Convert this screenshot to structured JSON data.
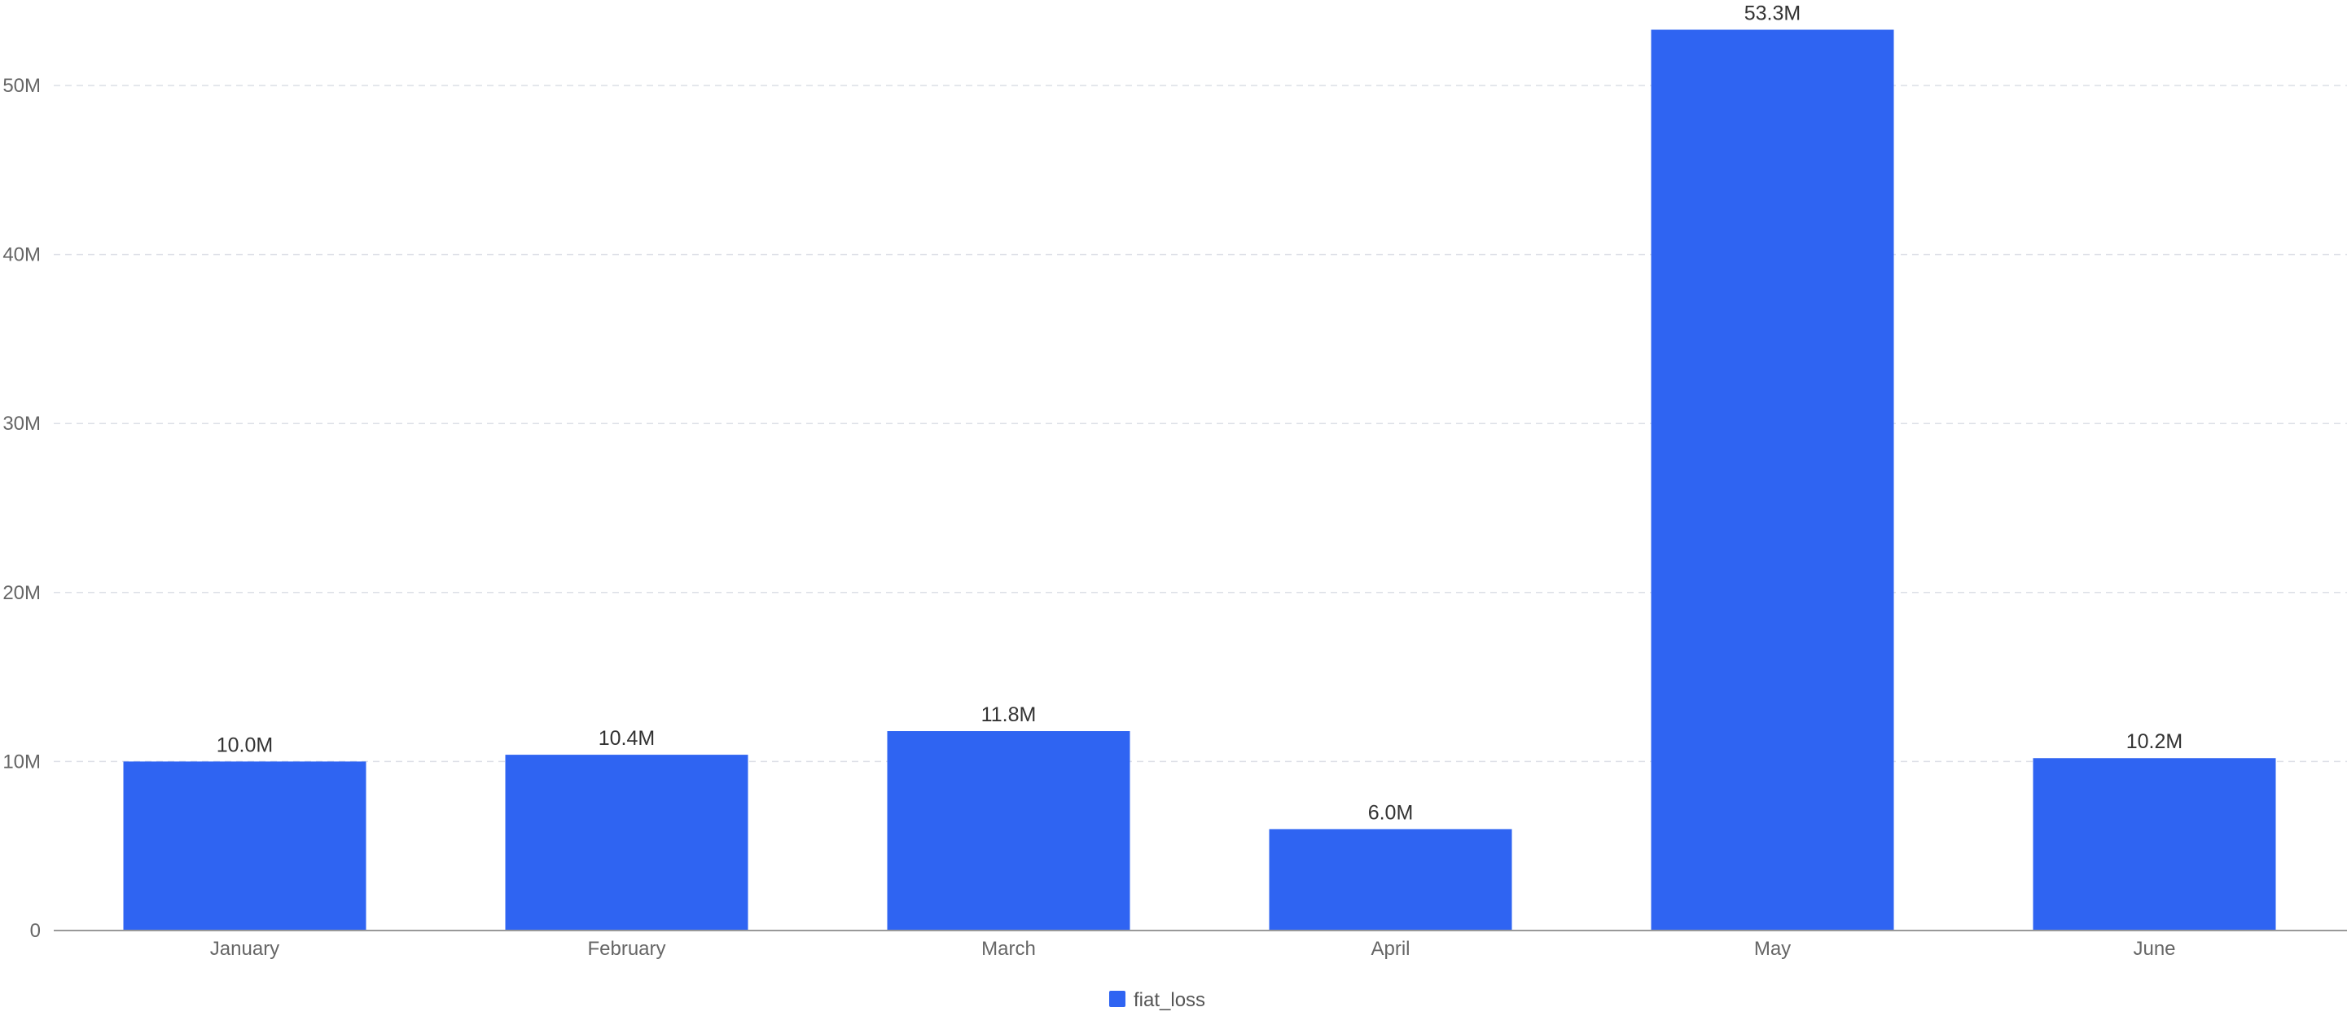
{
  "chart_data": {
    "type": "bar",
    "categories": [
      "January",
      "February",
      "March",
      "April",
      "May",
      "June"
    ],
    "series": [
      {
        "name": "fiat_loss",
        "values": [
          10000000,
          10400000,
          11800000,
          6000000,
          53300000,
          10200000
        ],
        "value_labels": [
          "10.0M",
          "10.4M",
          "11.8M",
          "6.0M",
          "53.3M",
          "10.2M"
        ],
        "color": "#2F64F2"
      }
    ],
    "y_ticks": [
      {
        "value": 0,
        "label": "0"
      },
      {
        "value": 10000000,
        "label": "10M"
      },
      {
        "value": 20000000,
        "label": "20M"
      },
      {
        "value": 30000000,
        "label": "30M"
      },
      {
        "value": 40000000,
        "label": "40M"
      },
      {
        "value": 50000000,
        "label": "50M"
      }
    ],
    "ylim": [
      0,
      53300000
    ],
    "title": "",
    "xlabel": "",
    "ylabel": "",
    "grid": true,
    "legend_position": "bottom-center",
    "colors": {
      "bar": "#2F64F2",
      "grid": "#DCDFE6",
      "axis": "#999999"
    }
  }
}
